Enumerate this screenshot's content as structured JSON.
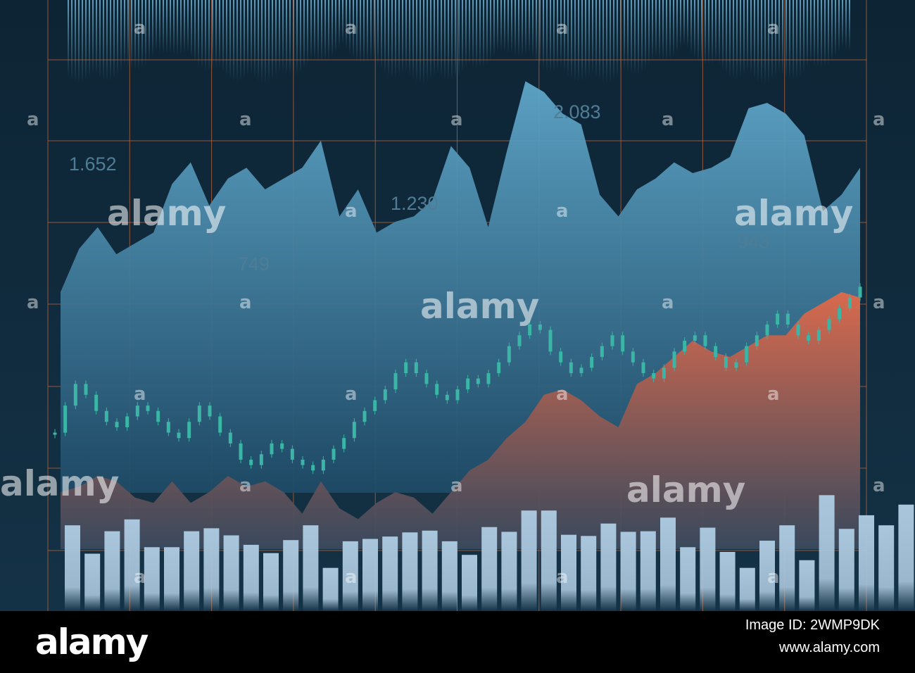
{
  "colors": {
    "background": "#0e2636",
    "grid": "#c0663a",
    "blue_area_top": "#5fa6c9",
    "blue_area_bottom": "#1e4a66",
    "red_area_top": "#e0694a",
    "red_area_bottom": "#3a4a5e",
    "candle": "#3bb5a6",
    "bars": "#a9c6dc",
    "value_labels": "#4f7d96",
    "footer_bg": "#000000",
    "footer_text": "#ffffff"
  },
  "chart_data": {
    "type": "area",
    "title": "",
    "xlabel": "",
    "ylabel": "",
    "grid": true,
    "axis_ticks_labeled": false,
    "value_labels": [
      "1.652",
      "749",
      "1.230",
      "2.083",
      "943"
    ],
    "series": [
      {
        "kind": "area",
        "values": [
          59,
          67,
          71,
          66,
          68,
          70,
          79,
          83,
          75,
          80,
          82,
          78,
          80,
          82,
          87,
          73,
          78,
          70,
          72,
          73,
          76,
          86,
          82,
          71,
          85,
          98,
          96,
          92,
          90,
          77,
          73,
          78,
          80,
          83,
          81,
          82,
          84,
          93,
          94,
          92,
          88,
          74,
          77,
          82
        ]
      },
      {
        "kind": "area",
        "values": [
          22,
          23,
          25,
          24,
          21,
          20,
          24,
          20,
          22,
          25,
          23,
          24,
          22,
          18,
          24,
          19,
          17,
          20,
          22,
          21,
          18,
          22,
          26,
          28,
          32,
          35,
          40,
          41,
          39,
          36,
          34,
          42,
          44,
          47,
          50,
          48,
          47,
          49,
          51,
          51,
          55,
          57,
          59,
          58
        ]
      },
      {
        "kind": "candlestick",
        "values": [
          33,
          38,
          42,
          40,
          37,
          35,
          34,
          36,
          38,
          37,
          35,
          33,
          32,
          35,
          38,
          36,
          33,
          31,
          28,
          27,
          29,
          31,
          30,
          28,
          27,
          26,
          28,
          30,
          32,
          35,
          37,
          39,
          41,
          44,
          46,
          44,
          42,
          40,
          39,
          41,
          43,
          42,
          44,
          46,
          49,
          51,
          53,
          52,
          48,
          46,
          44,
          45,
          47,
          49,
          51,
          48,
          46,
          44,
          43,
          45,
          48,
          50,
          51,
          49,
          47,
          45,
          46,
          49,
          51,
          53,
          55,
          53,
          51,
          50,
          52,
          54,
          56,
          58,
          60
        ]
      },
      {
        "kind": "bar",
        "values": [
          14.5,
          9.7,
          13.5,
          15.5,
          10.8,
          10.8,
          13.5,
          14,
          12.8,
          11.2,
          9.8,
          12,
          14.5,
          7.3,
          11.8,
          12.2,
          12.6,
          13.3,
          13.6,
          11.8,
          9.5,
          14.2,
          13.4,
          17,
          17,
          12.9,
          12.7,
          14.8,
          13.4,
          13.5,
          15.8,
          10.8,
          14.1,
          10,
          7.3,
          11.9,
          14.5,
          8.6,
          19.6,
          13.9,
          16.2,
          14.5,
          18
        ]
      }
    ]
  },
  "watermark": {
    "text": "alamy",
    "marker": "a"
  },
  "footer": {
    "logo": "alamy",
    "image_id": "Image ID: 2WMP9DK",
    "url": "www.alamy.com"
  }
}
